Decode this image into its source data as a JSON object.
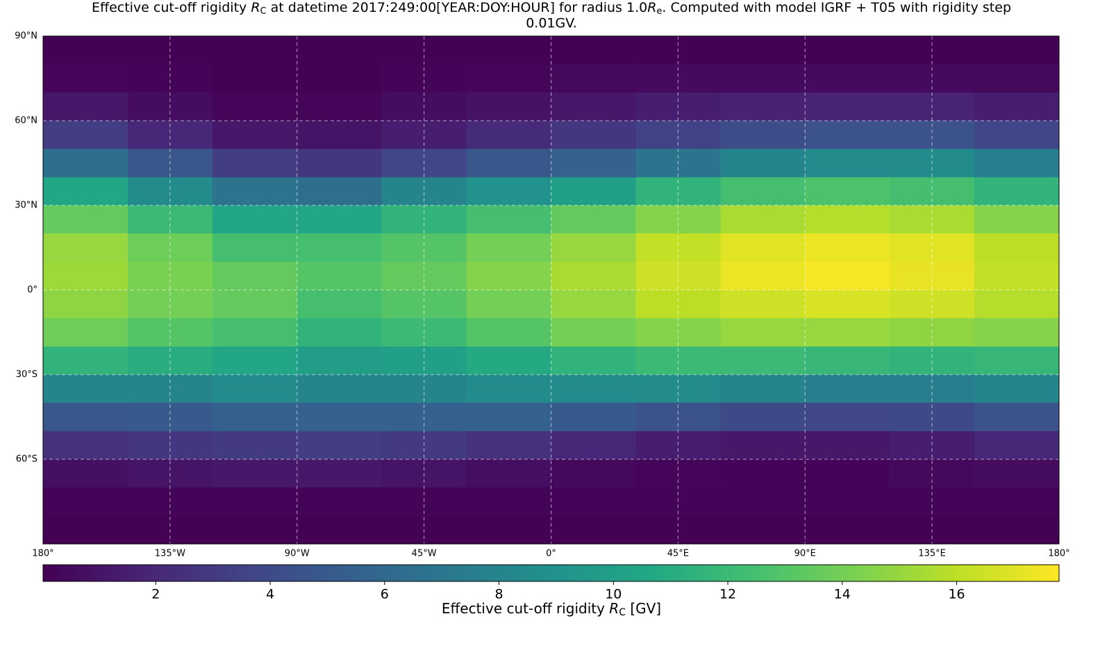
{
  "chart_data": {
    "type": "heatmap",
    "title": [
      "Effective cut-off rigidity ",
      "R",
      "C",
      " at datetime 2017:249:00[YEAR:DOY:HOUR] for radius 1.0",
      "R",
      "e",
      ". Computed with model IGRF + T05 with rigidity step",
      "0.01GV."
    ],
    "colorbar_label": [
      "Effective cut-off rigidity ",
      "R",
      "C",
      " [GV]"
    ],
    "colormap": "viridis",
    "grid": true,
    "xlim": [
      -180,
      180
    ],
    "ylim": [
      -90,
      90
    ],
    "xticks": [
      {
        "value": -180,
        "label": "180°"
      },
      {
        "value": -135,
        "label": "135°W"
      },
      {
        "value": -90,
        "label": "90°W"
      },
      {
        "value": -45,
        "label": "45°W"
      },
      {
        "value": 0,
        "label": "0°"
      },
      {
        "value": 45,
        "label": "45°E"
      },
      {
        "value": 90,
        "label": "90°E"
      },
      {
        "value": 135,
        "label": "135°E"
      },
      {
        "value": 180,
        "label": "180°"
      }
    ],
    "yticks": [
      {
        "value": 90,
        "label": "90°N"
      },
      {
        "value": 60,
        "label": "60°N"
      },
      {
        "value": 30,
        "label": "30°N"
      },
      {
        "value": 0,
        "label": "0°"
      },
      {
        "value": -30,
        "label": "30°S"
      },
      {
        "value": -60,
        "label": "60°S"
      }
    ],
    "clim": [
      0.03,
      17.79
    ],
    "cticks": [
      2,
      4,
      6,
      8,
      10,
      12,
      14,
      16
    ],
    "x": [
      -165,
      -135,
      -105,
      -75,
      -45,
      -15,
      15,
      45,
      75,
      105,
      135,
      165
    ],
    "y": [
      85,
      75,
      65,
      55,
      45,
      35,
      25,
      15,
      5,
      -5,
      -15,
      -25,
      -35,
      -45,
      -55,
      -65,
      -75,
      -85
    ],
    "values": [
      [
        0.1,
        0.1,
        0.1,
        0.1,
        0.1,
        0.1,
        0.1,
        0.1,
        0.1,
        0.1,
        0.1,
        0.1
      ],
      [
        0.3,
        0.2,
        0.1,
        0.1,
        0.2,
        0.3,
        0.4,
        0.5,
        0.5,
        0.5,
        0.5,
        0.4
      ],
      [
        1.2,
        0.6,
        0.3,
        0.3,
        0.6,
        0.9,
        1.2,
        1.5,
        1.7,
        1.8,
        1.8,
        1.5
      ],
      [
        3.2,
        2.0,
        1.2,
        1.0,
        1.5,
        2.2,
        2.8,
        3.5,
        4.2,
        4.5,
        4.5,
        3.8
      ],
      [
        6.5,
        4.8,
        3.2,
        2.8,
        3.8,
        4.8,
        5.5,
        6.8,
        8.0,
        8.5,
        8.5,
        7.5
      ],
      [
        10.5,
        8.5,
        6.8,
        6.5,
        8.0,
        9.0,
        10.0,
        11.5,
        12.5,
        12.8,
        12.5,
        11.5
      ],
      [
        13.5,
        12.0,
        10.5,
        10.5,
        11.5,
        12.5,
        13.5,
        14.5,
        15.5,
        15.8,
        15.5,
        14.5
      ],
      [
        15.0,
        13.8,
        12.5,
        12.5,
        13.0,
        14.0,
        15.0,
        16.2,
        17.0,
        17.3,
        17.0,
        16.0
      ],
      [
        15.2,
        14.2,
        13.5,
        13.0,
        13.5,
        14.5,
        15.5,
        16.5,
        17.3,
        17.6,
        17.2,
        16.2
      ],
      [
        14.8,
        14.0,
        13.5,
        12.5,
        13.0,
        14.0,
        15.0,
        16.0,
        16.5,
        16.8,
        16.5,
        15.8
      ],
      [
        13.8,
        13.0,
        12.5,
        11.5,
        12.0,
        13.0,
        14.0,
        14.5,
        15.0,
        15.0,
        14.8,
        14.5
      ],
      [
        11.5,
        11.0,
        10.5,
        9.8,
        10.0,
        10.8,
        11.5,
        12.0,
        12.0,
        11.8,
        11.5,
        11.8
      ],
      [
        8.0,
        8.0,
        8.5,
        8.0,
        8.0,
        8.5,
        8.5,
        8.5,
        8.0,
        7.5,
        7.5,
        8.0
      ],
      [
        4.8,
        5.0,
        5.5,
        5.5,
        5.5,
        5.5,
        5.0,
        4.5,
        4.0,
        3.8,
        4.0,
        4.5
      ],
      [
        2.5,
        2.8,
        3.0,
        3.2,
        3.0,
        2.5,
        2.0,
        1.5,
        1.2,
        1.2,
        1.5,
        2.0
      ],
      [
        0.8,
        1.0,
        1.2,
        1.2,
        1.0,
        0.7,
        0.4,
        0.3,
        0.2,
        0.2,
        0.4,
        0.6
      ],
      [
        0.2,
        0.2,
        0.2,
        0.2,
        0.2,
        0.2,
        0.2,
        0.2,
        0.2,
        0.2,
        0.2,
        0.2
      ],
      [
        0.1,
        0.1,
        0.1,
        0.1,
        0.1,
        0.1,
        0.1,
        0.1,
        0.1,
        0.1,
        0.1,
        0.1
      ]
    ]
  }
}
